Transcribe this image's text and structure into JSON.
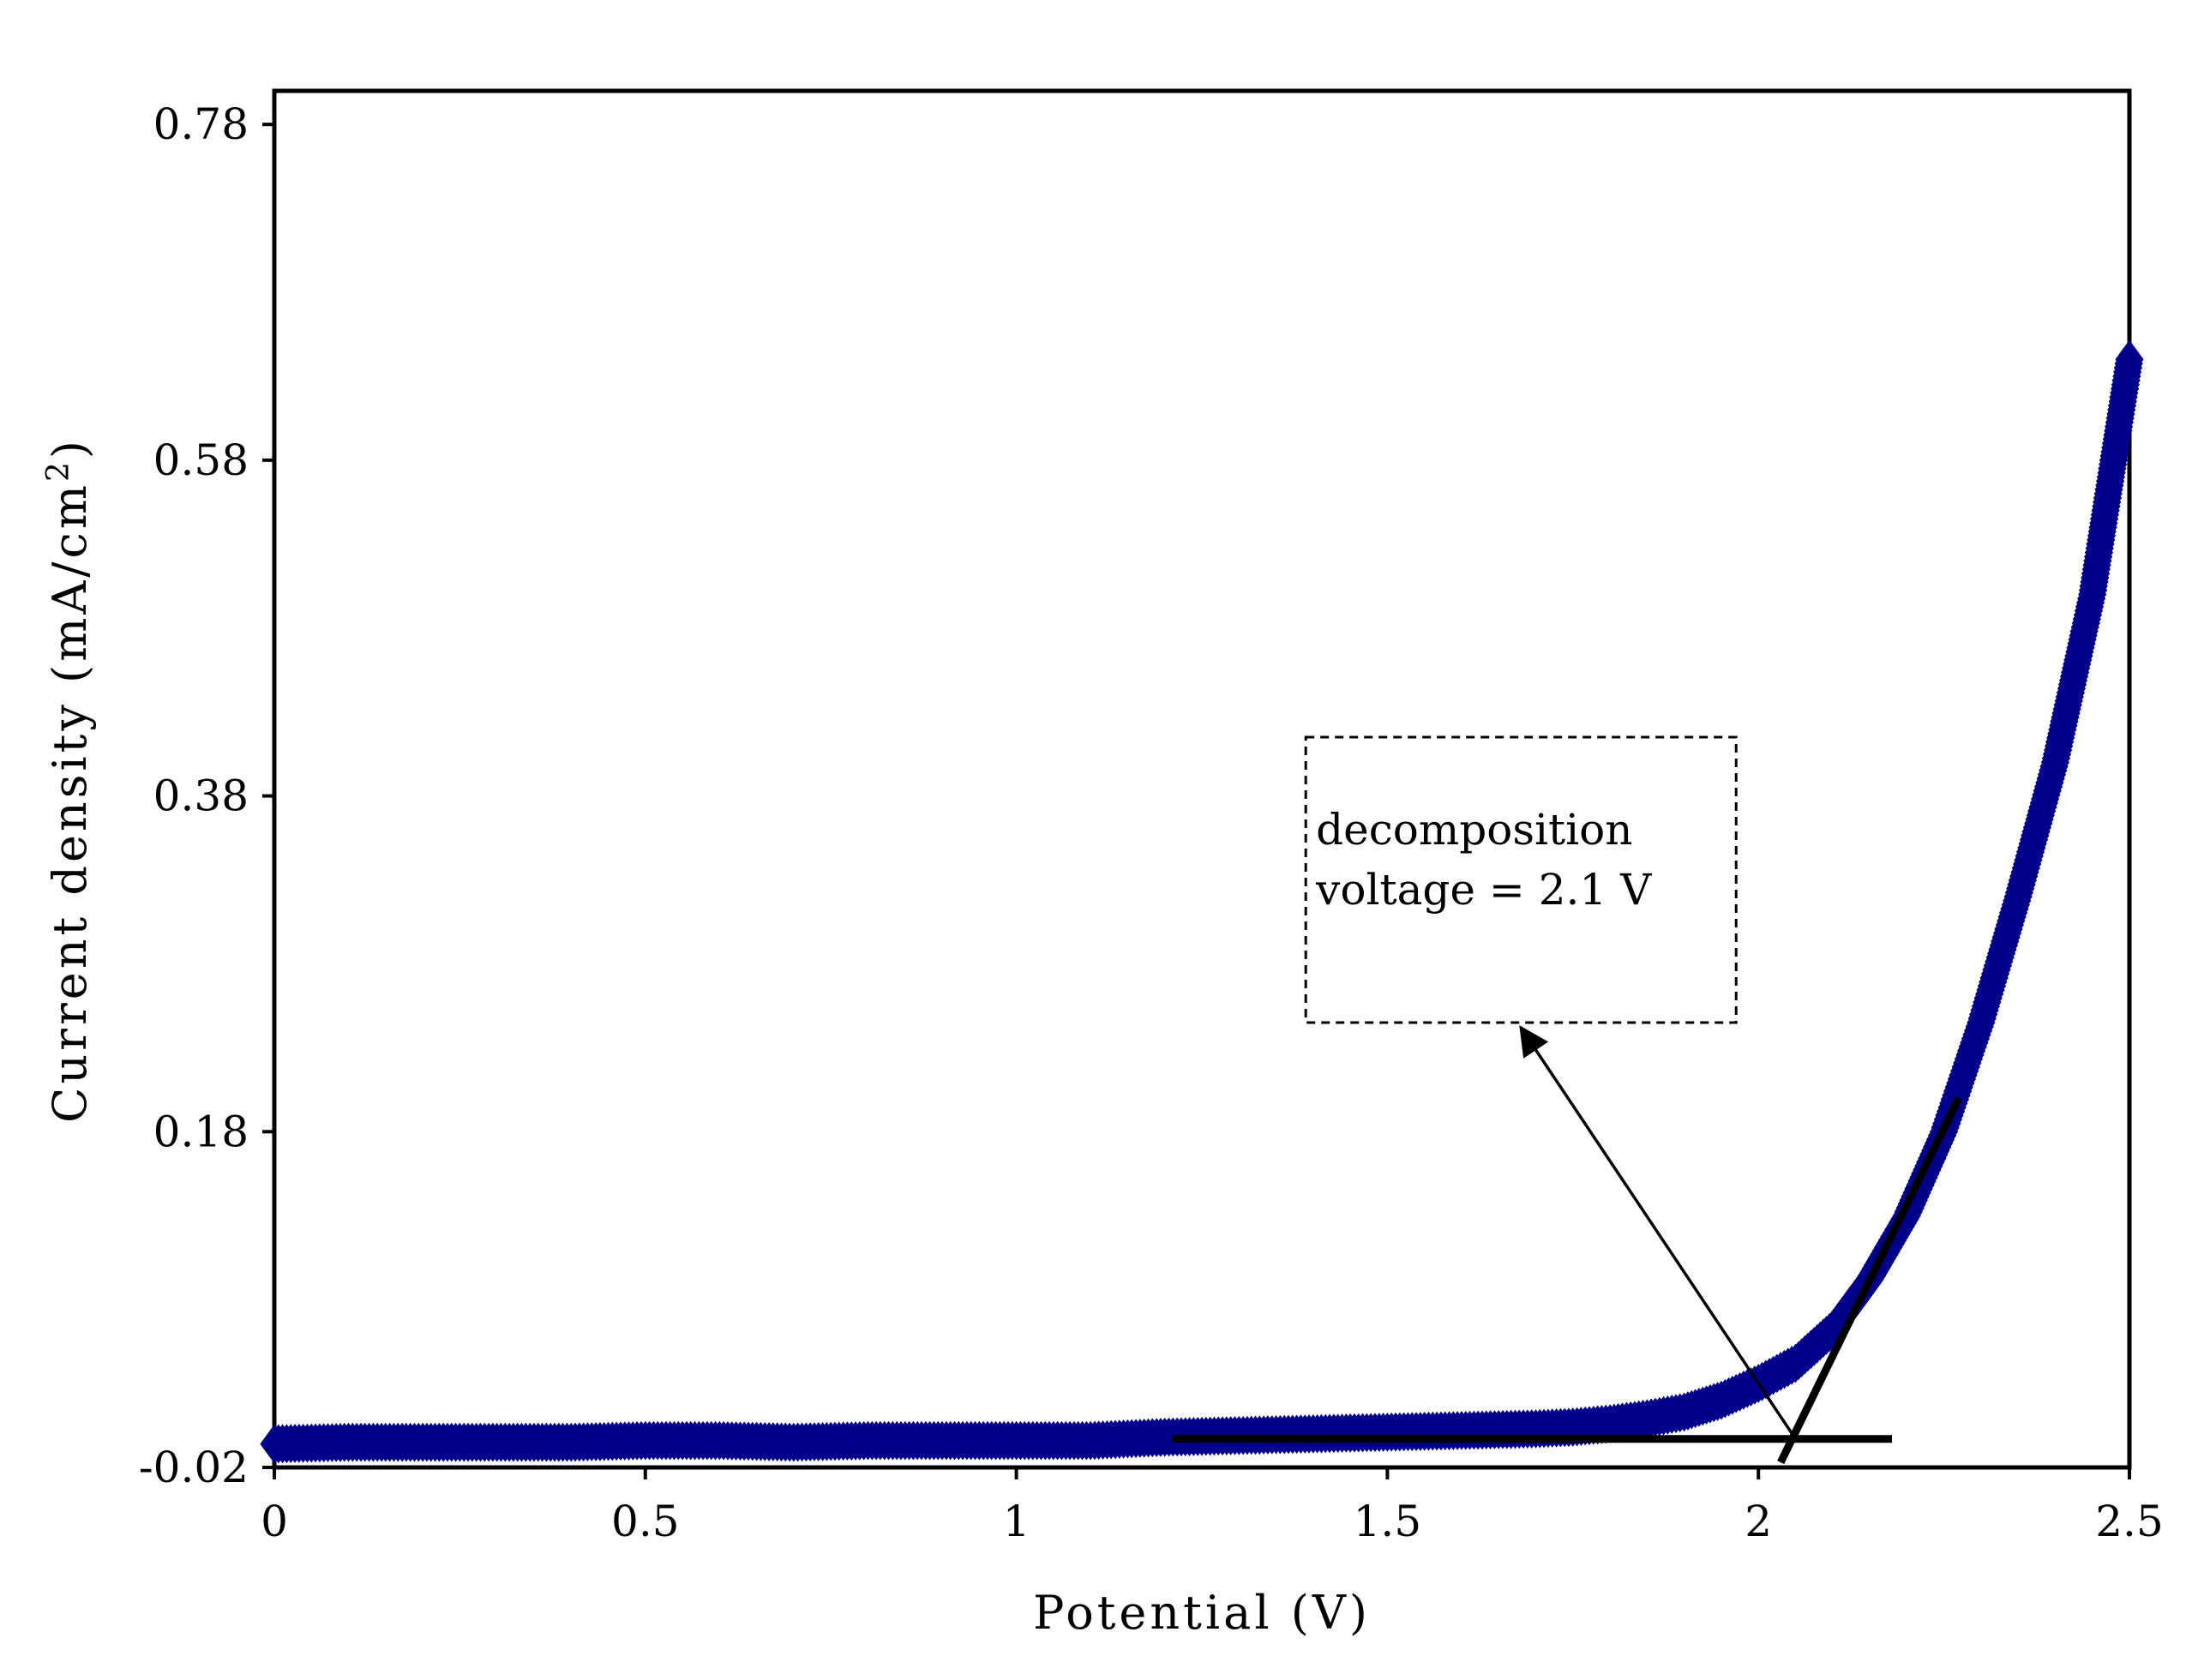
{
  "chart_data": {
    "type": "scatter",
    "title": "",
    "xlabel": "Potential (V)",
    "ylabel_main": "Current density (mA/cm",
    "ylabel_sup": "2",
    "ylabel_close": ")",
    "xlim": [
      0,
      2.5
    ],
    "ylim": [
      -0.02,
      0.8
    ],
    "x_ticks": [
      {
        "value": 0,
        "label": "0"
      },
      {
        "value": 0.5,
        "label": "0.5"
      },
      {
        "value": 1,
        "label": "1"
      },
      {
        "value": 1.5,
        "label": "1.5"
      },
      {
        "value": 2,
        "label": "2"
      },
      {
        "value": 2.5,
        "label": "2.5"
      }
    ],
    "y_ticks": [
      {
        "value": -0.02,
        "label": "-0.02"
      },
      {
        "value": 0.18,
        "label": "0.18"
      },
      {
        "value": 0.38,
        "label": "0.38"
      },
      {
        "value": 0.58,
        "label": "0.58"
      },
      {
        "value": 0.78,
        "label": "0.78"
      }
    ],
    "grid": false,
    "legend": "none",
    "series": [
      {
        "marker": "diamond",
        "color": "#00008B",
        "points": [
          [
            0.0,
            -0.006
          ],
          [
            0.1,
            -0.005
          ],
          [
            0.2,
            -0.005
          ],
          [
            0.3,
            -0.005
          ],
          [
            0.4,
            -0.005
          ],
          [
            0.5,
            -0.004
          ],
          [
            0.6,
            -0.004
          ],
          [
            0.7,
            -0.005
          ],
          [
            0.8,
            -0.004
          ],
          [
            0.9,
            -0.004
          ],
          [
            1.0,
            -0.004
          ],
          [
            1.1,
            -0.004
          ],
          [
            1.2,
            -0.002
          ],
          [
            1.3,
            -0.001
          ],
          [
            1.4,
            0.0
          ],
          [
            1.5,
            0.001
          ],
          [
            1.6,
            0.002
          ],
          [
            1.7,
            0.003
          ],
          [
            1.75,
            0.004
          ],
          [
            1.8,
            0.006
          ],
          [
            1.85,
            0.009
          ],
          [
            1.9,
            0.013
          ],
          [
            1.95,
            0.02
          ],
          [
            2.0,
            0.03
          ],
          [
            2.05,
            0.042
          ],
          [
            2.1,
            0.062
          ],
          [
            2.15,
            0.092
          ],
          [
            2.2,
            0.13
          ],
          [
            2.25,
            0.18
          ],
          [
            2.3,
            0.245
          ],
          [
            2.35,
            0.32
          ],
          [
            2.4,
            0.4
          ],
          [
            2.45,
            0.5
          ],
          [
            2.5,
            0.64
          ]
        ]
      }
    ],
    "tangent_lines": [
      {
        "x": [
          1.21,
          2.18
        ],
        "y": [
          -0.003,
          -0.003
        ]
      },
      {
        "x": [
          2.03,
          2.27
        ],
        "y": [
          -0.017,
          0.2
        ]
      }
    ],
    "annotation": {
      "lines": [
        "decomposition",
        "voltage = 2.1 V"
      ],
      "box_x": [
        1.39,
        1.97
      ],
      "box_y": [
        0.245,
        0.415
      ],
      "arrow_from": [
        2.05,
        -0.003
      ],
      "arrow_to": [
        1.68,
        0.245
      ]
    }
  }
}
